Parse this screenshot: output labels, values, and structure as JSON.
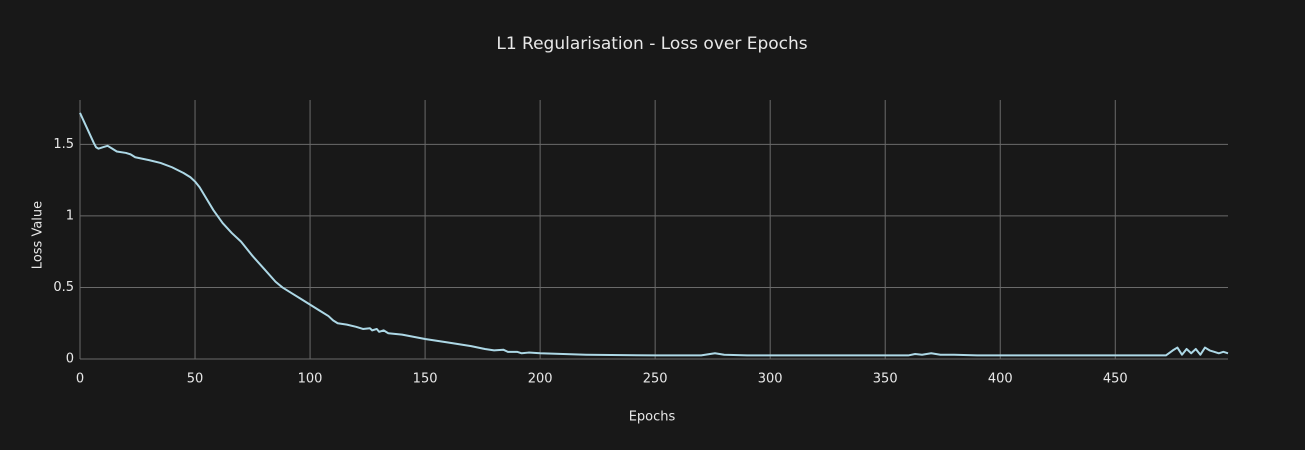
{
  "chart_data": {
    "type": "line",
    "title": "L1 Regularisation - Loss over Epochs",
    "x_label": "Epochs",
    "y_label": "Loss Value",
    "xlim": [
      0,
      499
    ],
    "ylim": [
      0,
      1.81
    ],
    "xticks": [
      0,
      50,
      100,
      150,
      200,
      250,
      300,
      350,
      400,
      450
    ],
    "yticks": [
      0,
      0.5,
      1,
      1.5
    ],
    "grid": true,
    "series": [
      {
        "color": "#add8e6",
        "x": [
          0,
          2,
          4,
          6,
          7,
          8,
          10,
          12,
          14,
          16,
          20,
          22,
          24,
          30,
          35,
          40,
          45,
          48,
          50,
          52,
          55,
          58,
          62,
          66,
          70,
          75,
          80,
          85,
          88,
          92,
          96,
          100,
          104,
          108,
          110,
          112,
          116,
          120,
          123,
          126,
          127,
          129,
          130,
          132,
          134,
          140,
          150,
          160,
          170,
          176,
          180,
          184,
          186,
          190,
          192,
          195,
          200,
          210,
          220,
          250,
          270,
          276,
          280,
          290,
          360,
          363,
          366,
          370,
          374,
          380,
          390,
          472,
          475,
          477,
          479,
          481,
          483,
          485,
          487,
          489,
          491,
          493,
          495,
          497,
          499
        ],
        "values": [
          1.72,
          1.65,
          1.58,
          1.51,
          1.48,
          1.47,
          1.48,
          1.49,
          1.47,
          1.45,
          1.44,
          1.43,
          1.41,
          1.39,
          1.37,
          1.34,
          1.3,
          1.27,
          1.24,
          1.2,
          1.12,
          1.04,
          0.95,
          0.88,
          0.82,
          0.72,
          0.63,
          0.54,
          0.5,
          0.46,
          0.42,
          0.38,
          0.34,
          0.3,
          0.27,
          0.25,
          0.24,
          0.225,
          0.21,
          0.215,
          0.2,
          0.21,
          0.19,
          0.2,
          0.18,
          0.17,
          0.14,
          0.115,
          0.09,
          0.07,
          0.06,
          0.065,
          0.05,
          0.05,
          0.04,
          0.045,
          0.04,
          0.035,
          0.03,
          0.025,
          0.025,
          0.04,
          0.03,
          0.025,
          0.025,
          0.035,
          0.03,
          0.04,
          0.03,
          0.03,
          0.025,
          0.025,
          0.06,
          0.08,
          0.03,
          0.07,
          0.04,
          0.07,
          0.03,
          0.08,
          0.06,
          0.05,
          0.04,
          0.05,
          0.04
        ]
      }
    ]
  }
}
